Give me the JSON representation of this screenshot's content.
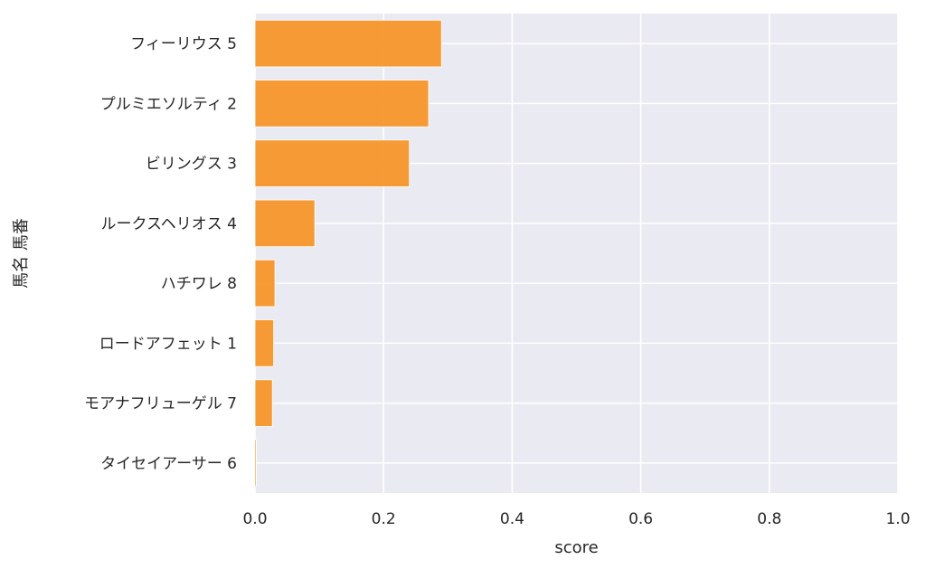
{
  "chart_data": {
    "type": "bar",
    "orientation": "horizontal",
    "categories": [
      "フィーリウス 5",
      "プルミエソルティ 2",
      "ビリングス 3",
      "ルークスヘリオス 4",
      "ハチワレ 8",
      "ロードアフェット 1",
      "モアナフリューゲル 7",
      "タイセイアーサー 6"
    ],
    "values": [
      0.29,
      0.27,
      0.24,
      0.093,
      0.031,
      0.029,
      0.027,
      0.002
    ],
    "xlabel": "score",
    "ylabel": "馬名 馬番",
    "xlim": [
      0,
      1.0
    ],
    "xticks": [
      "0.0",
      "0.2",
      "0.4",
      "0.6",
      "0.8",
      "1.0"
    ],
    "grid": true,
    "bar_color": "#f7962a",
    "background_color": "#eaeaf2"
  }
}
